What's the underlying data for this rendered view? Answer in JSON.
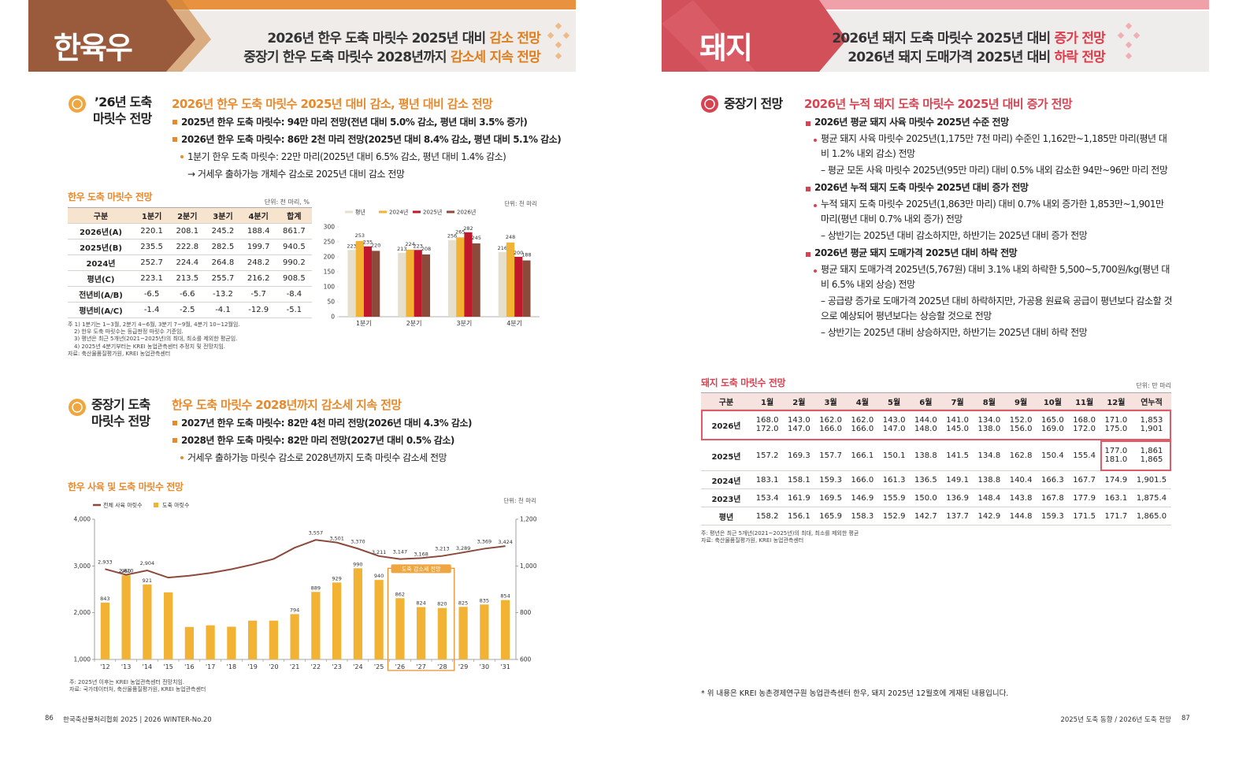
{
  "left": {
    "header": {
      "title": "한육우",
      "lines": [
        [
          "2026년 한우 도축 마릿수 2025년 대비 ",
          "감소 전망"
        ],
        [
          "중장기 한우 도축 마릿수 2028년까지 ",
          "감소세 지속 전망"
        ]
      ]
    },
    "section1": {
      "label": [
        "’26년 도축",
        "마릿수 전망"
      ],
      "headline": "2026년 한우 도축 마릿수 2025년 대비 감소, 평년 대비 감소 전망",
      "items": [
        {
          "text": "2025년 한우 도축 마릿수: 94만 마리 전망(전년 대비 5.0% 감소, 평년 대비 3.5% 증가)"
        },
        {
          "text": "2026년 한우 도축 마릿수: 86만 2천 마리 전망(2025년 대비 8.4% 감소, 평년 대비 5.1% 감소)",
          "sub": [
            {
              "text": "1분기 한우 도축 마릿수: 22만 마리(2025년 대비 6.5% 감소, 평년 대비 1.4% 감소)",
              "details": [
                "→ 거세우 출하가능 개체수 감소로 2025년 대비 감소 전망"
              ]
            }
          ]
        }
      ]
    },
    "table": {
      "title": "한우 도축 마릿수 전망",
      "unit": "단위: 천 마리, %",
      "columns": [
        "구분",
        "1분기",
        "2분기",
        "3분기",
        "4분기",
        "합계"
      ],
      "rows": [
        [
          "2026년(A)",
          "220.1",
          "208.1",
          "245.2",
          "188.4",
          "861.7"
        ],
        [
          "2025년(B)",
          "235.5",
          "222.8",
          "282.5",
          "199.7",
          "940.5"
        ],
        [
          "2024년",
          "252.7",
          "224.4",
          "264.8",
          "248.2",
          "990.2"
        ],
        [
          "평년(C)",
          "223.1",
          "213.5",
          "255.7",
          "216.2",
          "908.5"
        ],
        [
          "전년비(A/B)",
          "-6.5",
          "-6.6",
          "-13.2",
          "-5.7",
          "-8.4"
        ],
        [
          "평년비(A/C)",
          "-1.4",
          "-2.5",
          "-4.1",
          "-12.9",
          "-5.1"
        ]
      ],
      "notes": [
        "주  1) 1분기는 1~3월, 2분기 4~6월, 3분기 7~9월, 4분기 10~12월임.",
        "2) 한우 도축 마릿수는 등급판정 마릿수 기준임.",
        "3) 평년은 최근 5개년(2021~2025년)의 최대, 최소를 제외한 평균임.",
        "4) 2025년 4분기부터는 KREI 농업관측센터 추정치 및 전망치임.",
        "자료: 축산물품질평가원, KREI 농업관측센터"
      ]
    },
    "section2": {
      "label": [
        "중장기 도축",
        "마릿수 전망"
      ],
      "headline": "한우 도축 마릿수 2028년까지 감소세 지속 전망",
      "items": [
        {
          "text": "2027년 한우 도축 마릿수: 82만 4천 마리 전망(2026년 대비 4.3% 감소)"
        },
        {
          "text": "2028년 한우 도축 마릿수: 82만 마리 전망(2027년 대비 0.5% 감소)",
          "sub": [
            {
              "text": "거세우 출하가능 마릿수 감소로 2028년까지 도축 마릿수 감소세 전망"
            }
          ]
        }
      ]
    },
    "chart2_notes": [
      "주: 2025년 이후는 KREI 농업관측센터 전망치임.",
      "자료: 국가데이터처, 축산물품질평가원, KREI 농업관측센터"
    ],
    "footer": {
      "page": "86",
      "text": "한국축산물처리협회 2025 | 2026 WINTER-No.20"
    }
  },
  "right": {
    "header": {
      "title": "돼지",
      "lines": [
        [
          "2026년 돼지 도축 마릿수 2025년 대비 ",
          "증가 전망"
        ],
        [
          "2026년 돼지 도매가격 2025년 대비 ",
          "하락 전망"
        ]
      ]
    },
    "section": {
      "label": [
        "중장기 전망"
      ],
      "headline": "2026년 누적 돼지 도축 마릿수 2025년 대비 증가 전망",
      "items": [
        {
          "text": "2026년 평균 돼지 사육 마릿수 2025년 수준 전망",
          "sub": [
            {
              "text": "평균 돼지 사육 마릿수 2025년(1,175만 7천 마리) 수준인 1,162만~1,185만 마리(평년 대비 1.2% 내외 감소) 전망",
              "details": [
                "– 평균 모돈 사육 마릿수 2025년(95만 마리) 대비 0.5% 내외 감소한 94만~96만 마리 전망"
              ]
            }
          ]
        },
        {
          "text": "2026년 누적 돼지 도축 마릿수 2025년 대비 증가 전망",
          "sub": [
            {
              "text": "누적 돼지 도축 마릿수 2025년(1,863만 마리) 대비 0.7% 내외 증가한 1,853만~1,901만 마리(평년 대비 0.7% 내외 증가) 전망",
              "details": [
                "– 상반기는 2025년 대비 감소하지만, 하반기는 2025년 대비 증가 전망"
              ]
            }
          ]
        },
        {
          "text": "2026년 평균 돼지 도매가격 2025년 대비 하락 전망",
          "sub": [
            {
              "text": "평균 돼지 도매가격 2025년(5,767원) 대비 3.1% 내외 하락한 5,500~5,700원/kg(평년 대비 6.5% 내외 상승) 전망",
              "details": [
                "– 공급량 증가로 도매가격 2025년 대비 하락하지만, 가공용 원료육 공급이 평년보다 감소할 것으로 예상되어 평년보다는 상승할 것으로 전망",
                "– 상반기는 2025년 대비 상승하지만, 하반기는 2025년 대비 하락 전망"
              ]
            }
          ]
        }
      ]
    },
    "table": {
      "title": "돼지 도축 마릿수 전망",
      "unit": "단위: 만 마리",
      "columns": [
        "구분",
        "1월",
        "2월",
        "3월",
        "4월",
        "5월",
        "6월",
        "7월",
        "8월",
        "9월",
        "10월",
        "11월",
        "12월",
        "연누적"
      ],
      "rows": [
        [
          "2026년",
          [
            "168.0",
            "172.0"
          ],
          [
            "143.0",
            "147.0"
          ],
          [
            "162.0",
            "166.0"
          ],
          [
            "162.0",
            "166.0"
          ],
          [
            "143.0",
            "147.0"
          ],
          [
            "144.0",
            "148.0"
          ],
          [
            "141.0",
            "145.0"
          ],
          [
            "134.0",
            "138.0"
          ],
          [
            "152.0",
            "156.0"
          ],
          [
            "165.0",
            "169.0"
          ],
          [
            "168.0",
            "172.0"
          ],
          [
            "171.0",
            "175.0"
          ],
          [
            "1,853",
            "1,901"
          ]
        ],
        [
          "2025년",
          "157.2",
          "169.3",
          "157.7",
          "166.1",
          "150.1",
          "138.8",
          "141.5",
          "134.8",
          "162.8",
          "150.4",
          "155.4",
          [
            "177.0",
            "181.0"
          ],
          [
            "1,861",
            "1,865"
          ]
        ],
        [
          "2024년",
          "183.1",
          "158.1",
          "159.3",
          "166.0",
          "161.3",
          "136.5",
          "149.1",
          "138.8",
          "140.4",
          "166.3",
          "167.7",
          "174.9",
          "1,901.5"
        ],
        [
          "2023년",
          "153.4",
          "161.9",
          "169.5",
          "146.9",
          "155.9",
          "150.0",
          "136.9",
          "148.4",
          "143.8",
          "167.8",
          "177.9",
          "163.1",
          "1,875.4"
        ],
        [
          "평년",
          "158.2",
          "156.1",
          "165.9",
          "158.3",
          "152.9",
          "142.7",
          "137.7",
          "142.9",
          "144.8",
          "159.3",
          "171.5",
          "171.7",
          "1,865.0"
        ]
      ],
      "notes": [
        "주: 평년은 최근 5개년(2021~2025년)의 최대, 최소를 제외한 평균",
        "자료: 축산물품질평가원, KREI 농업관측센터"
      ]
    },
    "footnote": "* 위 내용은 KREI 농촌경제연구원 농업관측센터 한우, 돼지 2025년 12월호에 게재된 내용입니다.",
    "footer": {
      "page": "87",
      "text": "2025년 도축 동향 / 2026년 도축 전망"
    }
  },
  "chart_data": [
    {
      "type": "bar",
      "unit": "단위: 천 마리",
      "categories": [
        "1분기",
        "2분기",
        "3분기",
        "4분기"
      ],
      "series": [
        {
          "name": "평년",
          "color": "#e6dfcc",
          "values": [
            223,
            213,
            256,
            216
          ]
        },
        {
          "name": "2024년",
          "color": "#f2b233",
          "values": [
            253,
            224,
            265,
            248
          ]
        },
        {
          "name": "2025년",
          "color": "#c0192c",
          "values": [
            235,
            223,
            282,
            200
          ]
        },
        {
          "name": "2026년",
          "color": "#8b4a3a",
          "values": [
            220,
            208,
            245,
            188
          ]
        }
      ],
      "ylim": [
        0,
        300
      ],
      "yticks": [
        0,
        50,
        100,
        150,
        200,
        250,
        300
      ]
    },
    {
      "type": "combo",
      "title": "한우 사육 및 도축 마릿수 전망",
      "unit": "단위: 천 마리",
      "annotation": "도축 감소세 전망",
      "categories": [
        "'12",
        "'13",
        "'14",
        "'15",
        "'16",
        "'17",
        "'18",
        "'19",
        "'20",
        "'21",
        "'22",
        "'23",
        "'24",
        "'25",
        "'26",
        "'27",
        "'28",
        "'29",
        "'30",
        "'31"
      ],
      "series": [
        {
          "name": "전체 사육 마릿수",
          "type": "line",
          "color": "#8b4a3a",
          "values": [
            2933,
            2810,
            2904,
            2750,
            2790,
            2850,
            2930,
            3030,
            3150,
            3390,
            3557,
            3501,
            3370,
            3211,
            3147,
            3168,
            3213,
            3289,
            3369,
            3424
          ],
          "value_labels": [
            "2,933",
            "2,810",
            "2,904",
            null,
            null,
            null,
            null,
            null,
            null,
            null,
            "3,557",
            "3,501",
            "3,370",
            "3,211",
            "3,147",
            "3,168",
            "3,213",
            "3,289",
            "3,369",
            "3,424"
          ]
        },
        {
          "name": "도축 마릿수",
          "type": "bar",
          "axis": "y2",
          "color": "#f2b233",
          "values": [
            843,
            960,
            921,
            887,
            739,
            746,
            740,
            766,
            766,
            794,
            889,
            929,
            990,
            940,
            862,
            824,
            820,
            825,
            835,
            854
          ],
          "value_labels": [
            "843",
            "960",
            "921",
            null,
            null,
            null,
            null,
            null,
            null,
            "794",
            "889",
            "929",
            "990",
            "940",
            "862",
            "824",
            "820",
            "825",
            "835",
            "854"
          ]
        }
      ],
      "ylim": [
        1000,
        4000
      ],
      "yticks": [
        {
          "value": 1000,
          "label": "1,000"
        },
        {
          "value": 2000,
          "label": "2,000"
        },
        {
          "value": 3000,
          "label": "3,000"
        },
        {
          "value": 4000,
          "label": "4,000"
        }
      ],
      "y2lim": [
        600,
        1200
      ],
      "y2ticks": [
        600,
        800,
        {
          "value": 1000,
          "label": "1,000"
        },
        {
          "value": 1200,
          "label": "1,200"
        }
      ]
    }
  ]
}
